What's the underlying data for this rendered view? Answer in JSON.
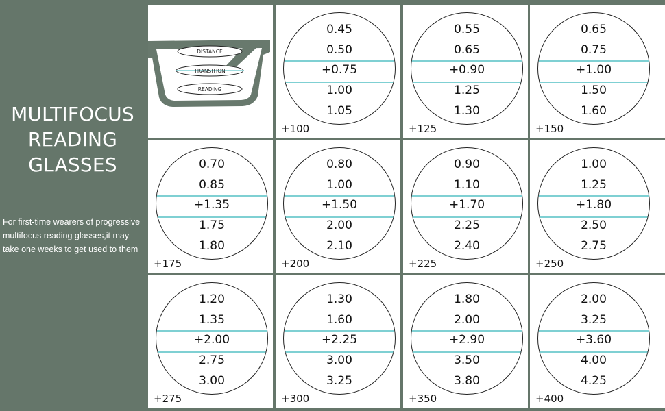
{
  "title_lines": [
    "MULTIFOCUS",
    "READING",
    "GLASSES"
  ],
  "description": "For first-time wearers of progressive multifocus reading glasses,it may take one weeks to get used to them",
  "diagram": {
    "zones": [
      "DISTANCE",
      "TRANSITION",
      "READING"
    ],
    "frame_color": "#68796d",
    "line_color": "#7fd0d3"
  },
  "lenses": [
    {
      "rows": [
        "0.45",
        "0.50",
        "+0.75",
        "1.00",
        "1.05"
      ],
      "power": "+100"
    },
    {
      "rows": [
        "0.55",
        "0.65",
        "+0.90",
        "1.25",
        "1.30"
      ],
      "power": "+125"
    },
    {
      "rows": [
        "0.65",
        "0.75",
        "+1.00",
        "1.50",
        "1.60"
      ],
      "power": "+150"
    },
    {
      "rows": [
        "0.70",
        "0.85",
        "+1.35",
        "1.75",
        "1.80"
      ],
      "power": "+175"
    },
    {
      "rows": [
        "0.80",
        "1.00",
        "+1.50",
        "2.00",
        "2.10"
      ],
      "power": "+200"
    },
    {
      "rows": [
        "0.90",
        "1.10",
        "+1.70",
        "2.25",
        "2.40"
      ],
      "power": "+225"
    },
    {
      "rows": [
        "1.00",
        "1.25",
        "+1.80",
        "2.50",
        "2.75"
      ],
      "power": "+250"
    },
    {
      "rows": [
        "1.20",
        "1.35",
        "+2.00",
        "2.75",
        "3.00"
      ],
      "power": "+275"
    },
    {
      "rows": [
        "1.30",
        "1.60",
        "+2.25",
        "3.00",
        "3.25"
      ],
      "power": "+300"
    },
    {
      "rows": [
        "1.80",
        "2.00",
        "+2.90",
        "3.50",
        "3.80"
      ],
      "power": "+350"
    },
    {
      "rows": [
        "2.00",
        "3.25",
        "+3.60",
        "4.00",
        "4.25"
      ],
      "power": "+400"
    }
  ]
}
